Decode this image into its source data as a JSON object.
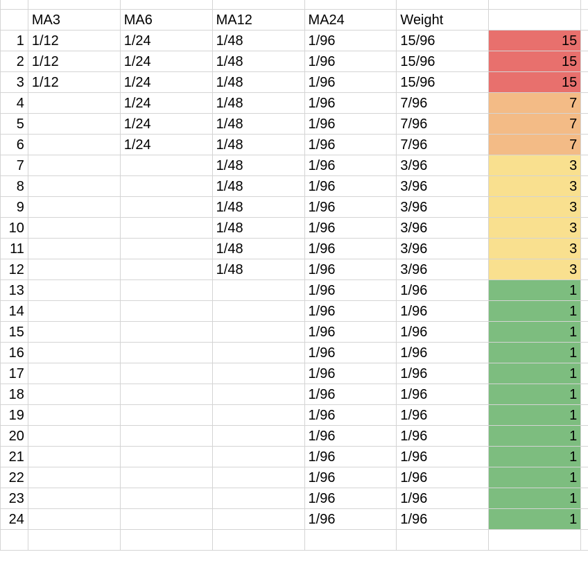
{
  "sheet": {
    "columns": [
      "",
      "MA3",
      "MA6",
      "MA12",
      "MA24",
      "Weight",
      ""
    ],
    "colors": {
      "15": "#e8706d",
      "7": "#f3bb86",
      "3": "#f9e08f",
      "1": "#7dbd7f"
    },
    "rows": [
      {
        "n": "1",
        "ma3": "1/12",
        "ma6": "1/24",
        "ma12": "1/48",
        "ma24": "1/96",
        "weight": "15/96",
        "value": "15"
      },
      {
        "n": "2",
        "ma3": "1/12",
        "ma6": "1/24",
        "ma12": "1/48",
        "ma24": "1/96",
        "weight": "15/96",
        "value": "15"
      },
      {
        "n": "3",
        "ma3": "1/12",
        "ma6": "1/24",
        "ma12": "1/48",
        "ma24": "1/96",
        "weight": "15/96",
        "value": "15"
      },
      {
        "n": "4",
        "ma3": "",
        "ma6": "1/24",
        "ma12": "1/48",
        "ma24": "1/96",
        "weight": "7/96",
        "value": "7"
      },
      {
        "n": "5",
        "ma3": "",
        "ma6": "1/24",
        "ma12": "1/48",
        "ma24": "1/96",
        "weight": "7/96",
        "value": "7"
      },
      {
        "n": "6",
        "ma3": "",
        "ma6": "1/24",
        "ma12": "1/48",
        "ma24": "1/96",
        "weight": "7/96",
        "value": "7"
      },
      {
        "n": "7",
        "ma3": "",
        "ma6": "",
        "ma12": "1/48",
        "ma24": "1/96",
        "weight": "3/96",
        "value": "3"
      },
      {
        "n": "8",
        "ma3": "",
        "ma6": "",
        "ma12": "1/48",
        "ma24": "1/96",
        "weight": "3/96",
        "value": "3"
      },
      {
        "n": "9",
        "ma3": "",
        "ma6": "",
        "ma12": "1/48",
        "ma24": "1/96",
        "weight": "3/96",
        "value": "3"
      },
      {
        "n": "10",
        "ma3": "",
        "ma6": "",
        "ma12": "1/48",
        "ma24": "1/96",
        "weight": "3/96",
        "value": "3"
      },
      {
        "n": "11",
        "ma3": "",
        "ma6": "",
        "ma12": "1/48",
        "ma24": "1/96",
        "weight": "3/96",
        "value": "3"
      },
      {
        "n": "12",
        "ma3": "",
        "ma6": "",
        "ma12": "1/48",
        "ma24": "1/96",
        "weight": "3/96",
        "value": "3"
      },
      {
        "n": "13",
        "ma3": "",
        "ma6": "",
        "ma12": "",
        "ma24": "1/96",
        "weight": "1/96",
        "value": "1"
      },
      {
        "n": "14",
        "ma3": "",
        "ma6": "",
        "ma12": "",
        "ma24": "1/96",
        "weight": "1/96",
        "value": "1"
      },
      {
        "n": "15",
        "ma3": "",
        "ma6": "",
        "ma12": "",
        "ma24": "1/96",
        "weight": "1/96",
        "value": "1"
      },
      {
        "n": "16",
        "ma3": "",
        "ma6": "",
        "ma12": "",
        "ma24": "1/96",
        "weight": "1/96",
        "value": "1"
      },
      {
        "n": "17",
        "ma3": "",
        "ma6": "",
        "ma12": "",
        "ma24": "1/96",
        "weight": "1/96",
        "value": "1"
      },
      {
        "n": "18",
        "ma3": "",
        "ma6": "",
        "ma12": "",
        "ma24": "1/96",
        "weight": "1/96",
        "value": "1"
      },
      {
        "n": "19",
        "ma3": "",
        "ma6": "",
        "ma12": "",
        "ma24": "1/96",
        "weight": "1/96",
        "value": "1"
      },
      {
        "n": "20",
        "ma3": "",
        "ma6": "",
        "ma12": "",
        "ma24": "1/96",
        "weight": "1/96",
        "value": "1"
      },
      {
        "n": "21",
        "ma3": "",
        "ma6": "",
        "ma12": "",
        "ma24": "1/96",
        "weight": "1/96",
        "value": "1"
      },
      {
        "n": "22",
        "ma3": "",
        "ma6": "",
        "ma12": "",
        "ma24": "1/96",
        "weight": "1/96",
        "value": "1"
      },
      {
        "n": "23",
        "ma3": "",
        "ma6": "",
        "ma12": "",
        "ma24": "1/96",
        "weight": "1/96",
        "value": "1"
      },
      {
        "n": "24",
        "ma3": "",
        "ma6": "",
        "ma12": "",
        "ma24": "1/96",
        "weight": "1/96",
        "value": "1"
      }
    ]
  }
}
